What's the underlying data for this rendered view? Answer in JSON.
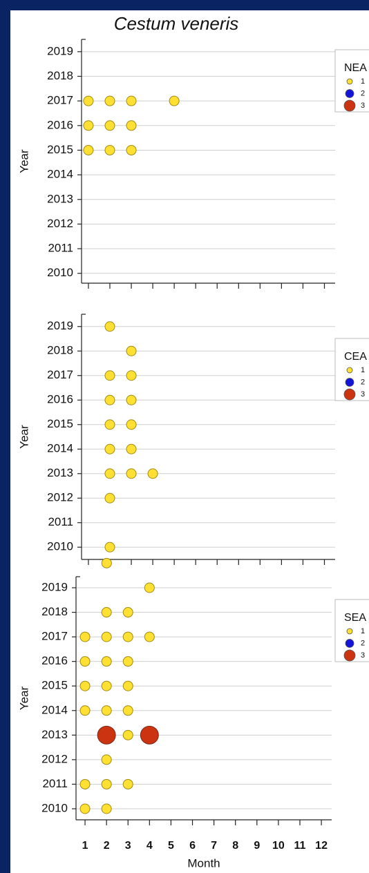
{
  "chart_data": [
    {
      "type": "scatter",
      "title": "Cestum veneris",
      "ylabel": "Year",
      "x": [
        1,
        2,
        3,
        5,
        1,
        2,
        3,
        1,
        2,
        3
      ],
      "y": [
        2017,
        2017,
        2017,
        2017,
        2016,
        2016,
        2016,
        2015,
        2015,
        2015
      ],
      "sizes": [
        1,
        1,
        1,
        1,
        1,
        1,
        1,
        1,
        1,
        1
      ],
      "xlim": [
        0.68,
        12.5
      ],
      "ylim": [
        2009.6,
        2019.5
      ],
      "xticks": [
        1,
        2,
        3,
        4,
        5,
        6,
        7,
        8,
        9,
        10,
        11,
        12
      ],
      "show_xtick_labels": false,
      "yticks": [
        2010,
        2011,
        2012,
        2013,
        2014,
        2015,
        2016,
        2017,
        2018,
        2019
      ],
      "grid": true,
      "legend": {
        "title": "NEA",
        "sizes": [
          1,
          2,
          3
        ],
        "colors": [
          "#ffe033",
          "#1414d8",
          "#cc3311"
        ]
      }
    },
    {
      "type": "scatter",
      "ylabel": "Year",
      "x": [
        2,
        3,
        2,
        3,
        2,
        3,
        2,
        3,
        2,
        3,
        2,
        3,
        4,
        2,
        2,
        1.85
      ],
      "y": [
        2019,
        2018,
        2017,
        2017,
        2016,
        2016,
        2015,
        2015,
        2014,
        2014,
        2013,
        2013,
        2013,
        2012,
        2010,
        2009.35
      ],
      "sizes": [
        1,
        1,
        1,
        1,
        1,
        1,
        1,
        1,
        1,
        1,
        1,
        1,
        1,
        1,
        1,
        1
      ],
      "xlim": [
        0.68,
        12.5
      ],
      "ylim": [
        2009.5,
        2019.5
      ],
      "xticks": [
        1,
        2,
        3,
        4,
        5,
        6,
        7,
        8,
        9,
        10,
        11,
        12
      ],
      "show_xtick_labels": false,
      "yticks": [
        2010,
        2011,
        2012,
        2013,
        2014,
        2015,
        2016,
        2017,
        2018,
        2019
      ],
      "grid": true,
      "legend": {
        "title": "CEA",
        "sizes": [
          1,
          2,
          3
        ],
        "colors": [
          "#ffe033",
          "#1414d8",
          "#cc3311"
        ]
      }
    },
    {
      "type": "scatter",
      "ylabel": "Year",
      "xlabel": "Month",
      "x": [
        4,
        2,
        3,
        1,
        2,
        3,
        4,
        1,
        2,
        3,
        1,
        2,
        3,
        1,
        2,
        3,
        2,
        3,
        4,
        2,
        1,
        2,
        3,
        1,
        2
      ],
      "y": [
        2019,
        2018,
        2018,
        2017,
        2017,
        2017,
        2017,
        2016,
        2016,
        2016,
        2015,
        2015,
        2015,
        2014,
        2014,
        2014,
        2013,
        2013,
        2013,
        2012,
        2011,
        2011,
        2011,
        2010,
        2010
      ],
      "sizes": [
        1,
        1,
        1,
        1,
        1,
        1,
        1,
        1,
        1,
        1,
        1,
        1,
        1,
        1,
        1,
        1,
        3,
        1,
        3,
        1,
        1,
        1,
        1,
        1,
        1
      ],
      "xlim": [
        0.58,
        12.48
      ],
      "ylim": [
        2009.55,
        2019.45
      ],
      "xticks": [
        1,
        2,
        3,
        4,
        5,
        6,
        7,
        8,
        9,
        10,
        11,
        12
      ],
      "show_xtick_labels": true,
      "yticks": [
        2010,
        2011,
        2012,
        2013,
        2014,
        2015,
        2016,
        2017,
        2018,
        2019
      ],
      "grid": true,
      "legend": {
        "title": "SEA",
        "sizes": [
          1,
          2,
          3
        ],
        "colors": [
          "#ffe033",
          "#1414d8",
          "#cc3311"
        ]
      }
    }
  ]
}
